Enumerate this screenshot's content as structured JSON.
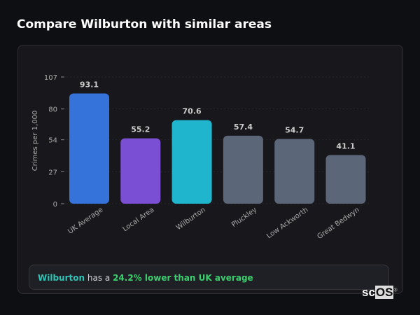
{
  "title": "Compare Wilburton with similar areas",
  "chart_data": {
    "type": "bar",
    "categories": [
      "UK Average",
      "Local Area",
      "Wilburton",
      "Pluckley",
      "Low Ackworth",
      "Great Bedwyn"
    ],
    "values": [
      93.1,
      55.2,
      70.6,
      57.4,
      54.7,
      41.1
    ],
    "value_labels": [
      "93.1",
      "55.2",
      "70.6",
      "57.4",
      "54.7",
      "41.1"
    ],
    "colors": [
      "#3572d9",
      "#7b4fd4",
      "#1fb5cc",
      "#5b6678",
      "#5b6678",
      "#5b6678"
    ],
    "ylabel": "Crimes per 1,000",
    "ylim": [
      0,
      107
    ],
    "yticks": [
      0,
      27,
      54,
      80,
      107
    ],
    "grid": true
  },
  "footer": {
    "area": "Wilburton",
    "text1": " has a ",
    "highlight": "24.2% lower than UK average",
    "area_color": "#2ec4b6",
    "highlight_color": "#3ccf6e"
  },
  "logo": {
    "text1": "sc",
    "text2": "OS",
    "mark": "®"
  }
}
